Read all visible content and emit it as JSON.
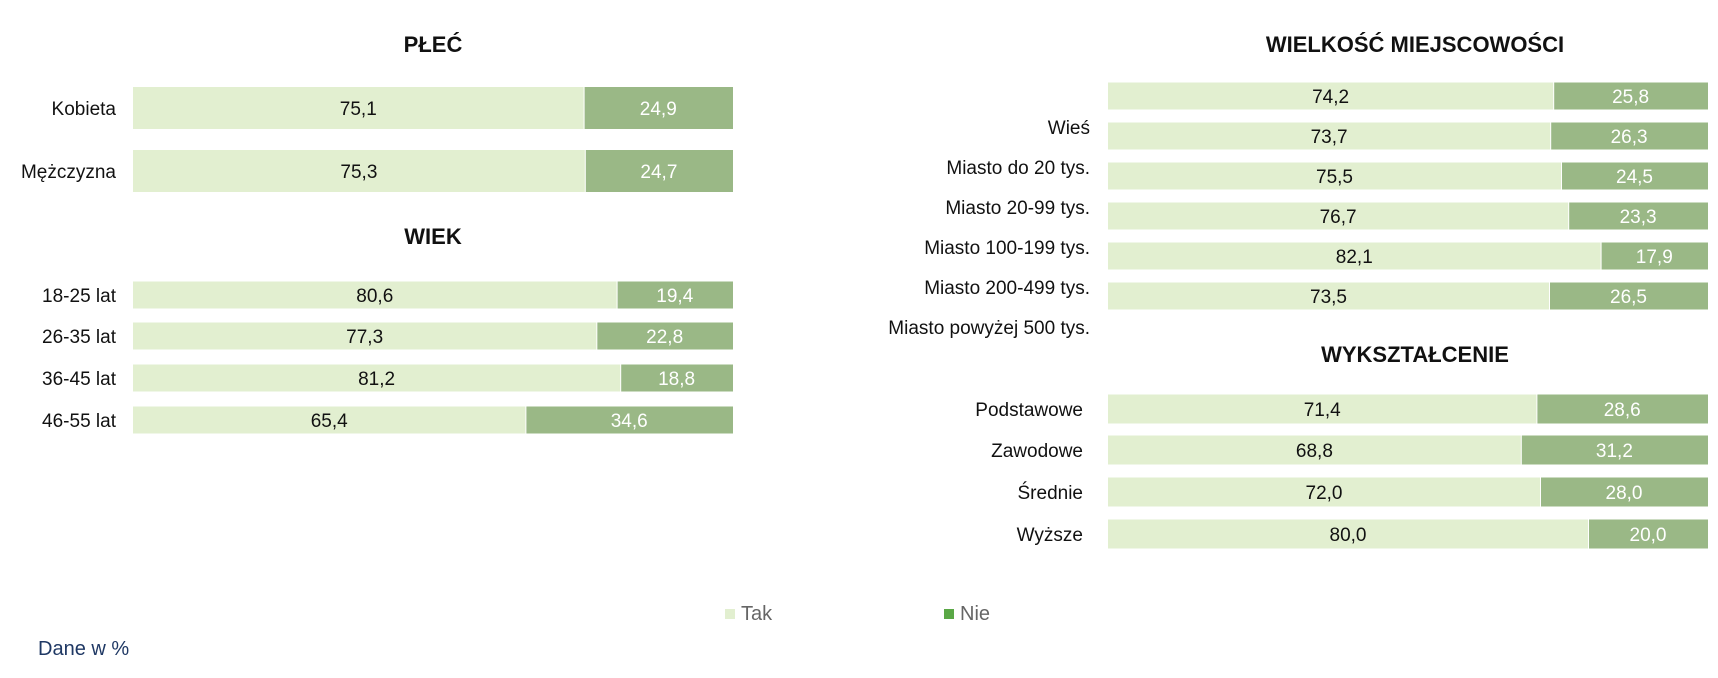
{
  "colors": {
    "tak": "#e2efd0",
    "nie": "#9ab886",
    "tak_text": "#111111",
    "nie_text": "#ffffff",
    "title": "#111111",
    "label": "#111111",
    "legend_text": "#666666"
  },
  "legend": [
    {
      "label": "Tak",
      "color": "#e2efd0"
    },
    {
      "label": "Nie",
      "color": "#5aa846"
    }
  ],
  "note": "Dane w %",
  "chart_data": [
    {
      "type": "bar",
      "stacked": true,
      "orientation": "horizontal",
      "title": "PŁEĆ",
      "categories": [
        "Kobieta",
        "Mężczyzna"
      ],
      "series": [
        {
          "name": "Tak",
          "values": [
            75.1,
            75.3
          ],
          "labels": [
            "75,1",
            "75,3"
          ]
        },
        {
          "name": "Nie",
          "values": [
            24.9,
            24.7
          ],
          "labels": [
            "24,9",
            "24,7"
          ]
        }
      ]
    },
    {
      "type": "bar",
      "stacked": true,
      "orientation": "horizontal",
      "title": "WIEK",
      "categories": [
        "18-25 lat",
        "26-35 lat",
        "36-45 lat",
        "46-55 lat"
      ],
      "series": [
        {
          "name": "Tak",
          "values": [
            80.6,
            77.3,
            81.2,
            65.4
          ],
          "labels": [
            "80,6",
            "77,3",
            "81,2",
            "65,4"
          ]
        },
        {
          "name": "Nie",
          "values": [
            19.4,
            22.8,
            18.8,
            34.6
          ],
          "labels": [
            "19,4",
            "22,8",
            "18,8",
            "34,6"
          ]
        }
      ]
    },
    {
      "type": "bar",
      "stacked": true,
      "orientation": "horizontal",
      "title": "WIELKOŚĆ MIEJSCOWOŚCI",
      "categories": [
        "Wieś",
        "Miasto do 20 tys.",
        "Miasto 20-99 tys.",
        "Miasto 100-199 tys.",
        "Miasto 200-499 tys.",
        "Miasto powyżej 500 tys."
      ],
      "series": [
        {
          "name": "Tak",
          "values": [
            74.2,
            73.7,
            75.5,
            76.7,
            82.1,
            73.5
          ],
          "labels": [
            "74,2",
            "73,7",
            "75,5",
            "76,7",
            "82,1",
            "73,5"
          ]
        },
        {
          "name": "Nie",
          "values": [
            25.8,
            26.3,
            24.5,
            23.3,
            17.9,
            26.5
          ],
          "labels": [
            "25,8",
            "26,3",
            "24,5",
            "23,3",
            "17,9",
            "26,5"
          ]
        }
      ]
    },
    {
      "type": "bar",
      "stacked": true,
      "orientation": "horizontal",
      "title": "WYKSZTAŁCENIE",
      "categories": [
        "Podstawowe",
        "Zawodowe",
        "Średnie",
        "Wyższe"
      ],
      "series": [
        {
          "name": "Tak",
          "values": [
            71.4,
            68.8,
            72.0,
            80.0
          ],
          "labels": [
            "71,4",
            "68,8",
            "72,0",
            "80,0"
          ]
        },
        {
          "name": "Nie",
          "values": [
            28.6,
            31.2,
            28.0,
            20.0
          ],
          "labels": [
            "28,6",
            "31,2",
            "28,0",
            "20,0"
          ]
        }
      ]
    }
  ]
}
